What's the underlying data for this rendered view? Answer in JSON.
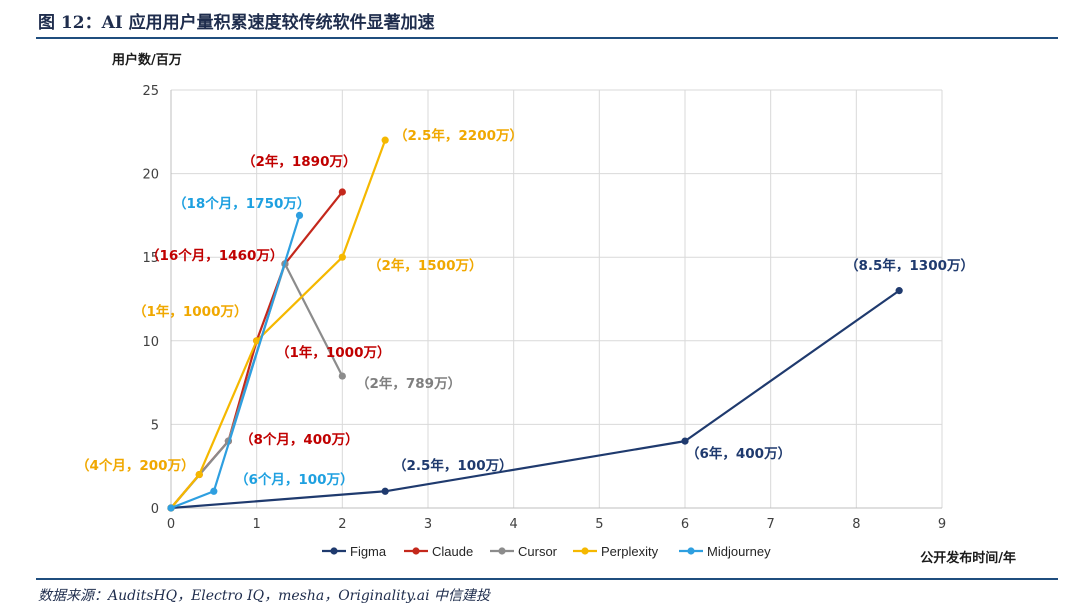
{
  "header": {
    "title": "图 12：AI 应用用户量积累速度较传统软件显著加速"
  },
  "footer": {
    "source": "数据来源：AuditsHQ，Electro IQ，mesha，Originality.ai 中信建投"
  },
  "chart_data": {
    "type": "line",
    "ylabel": "用户数/百万",
    "xlabel": "公开发布时间/年",
    "xlim": [
      0,
      9
    ],
    "ylim": [
      0,
      25
    ],
    "x_ticks": [
      0,
      1,
      2,
      3,
      4,
      5,
      6,
      7,
      8,
      9
    ],
    "y_ticks": [
      0,
      5,
      10,
      15,
      20,
      25
    ],
    "grid": true,
    "legend_position": "bottom",
    "series": [
      {
        "name": "Figma",
        "color": "#1f3a6e",
        "x": [
          0,
          2.5,
          6,
          8.5
        ],
        "y": [
          0,
          1,
          4,
          13
        ],
        "labels": [
          "",
          "（2.5年，100万）",
          "（6年，400万）",
          "（8.5年，1300万）"
        ],
        "label_color": "#1f3a6e"
      },
      {
        "name": "Claude",
        "color": "#c4281c",
        "x": [
          0,
          0.33,
          0.67,
          1,
          1.33,
          2
        ],
        "y": [
          0,
          2,
          4,
          10,
          14.6,
          18.9
        ],
        "labels": [
          "",
          "",
          "（8个月，400万）",
          "（1年，1000万）",
          "（16个月，1460万）",
          "（2年，1890万）"
        ],
        "label_color": "#c00000"
      },
      {
        "name": "Cursor",
        "color": "#8c8c8c",
        "x": [
          0,
          0.67,
          1.33,
          2
        ],
        "y": [
          0,
          4,
          14.6,
          7.89
        ],
        "labels": [
          "",
          "",
          "",
          "（2年，789万）"
        ],
        "label_color": "#7f7f7f"
      },
      {
        "name": "Perplexity",
        "color": "#f5b800",
        "x": [
          0,
          0.33,
          1,
          2,
          2.5
        ],
        "y": [
          0,
          2,
          10,
          15,
          22
        ],
        "labels": [
          "",
          "（4个月，200万）",
          "（1年，1000万）",
          "（2年，1500万）",
          "（2.5年，2200万）"
        ],
        "label_color": "#f0a800"
      },
      {
        "name": "Midjourney",
        "color": "#2e9fe0",
        "x": [
          0,
          0.5,
          1.5
        ],
        "y": [
          0,
          1,
          17.5
        ],
        "labels": [
          "",
          "（6个月，100万）",
          "（18个月，1750万）"
        ],
        "label_color": "#1ea0e0"
      }
    ]
  }
}
